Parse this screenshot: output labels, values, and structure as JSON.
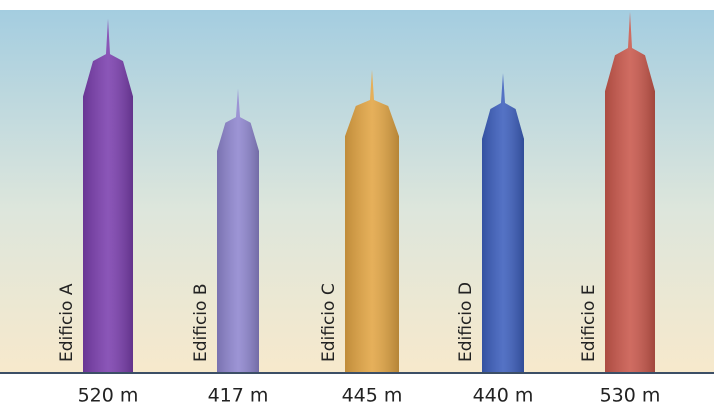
{
  "chart_data": {
    "type": "bar",
    "categories": [
      "Edificio A",
      "Edificio B",
      "Edificio C",
      "Edificio D",
      "Edificio E"
    ],
    "values": [
      520,
      417,
      445,
      440,
      530
    ],
    "value_labels": [
      "520 m",
      "417 m",
      "445 m",
      "440 m",
      "530 m"
    ],
    "colors": [
      "#7b3fae",
      "#8f86cf",
      "#e2a544",
      "#3d5fbd",
      "#c9584c"
    ]
  }
}
